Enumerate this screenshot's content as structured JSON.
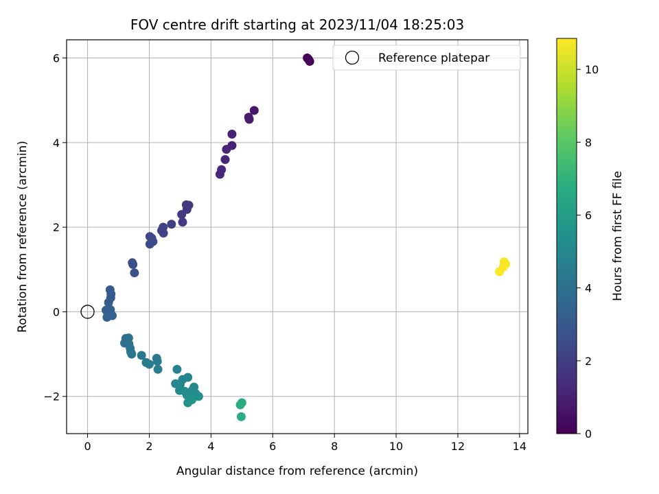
{
  "chart_data": {
    "type": "scatter",
    "title": "FOV centre drift starting at 2023/11/04 18:25:03",
    "xlabel": "Angular distance from reference (arcmin)",
    "ylabel": "Rotation from reference (arcmin)",
    "xlim": [
      -0.68,
      14.27
    ],
    "ylim": [
      -2.88,
      6.43
    ],
    "xticks": [
      0,
      2,
      4,
      6,
      8,
      10,
      12,
      14
    ],
    "xtick_labels": [
      "0",
      "2",
      "4",
      "6",
      "8",
      "10",
      "12",
      "14"
    ],
    "yticks": [
      -2,
      0,
      2,
      4,
      6
    ],
    "ytick_labels": [
      "−2",
      "0",
      "2",
      "4",
      "6"
    ],
    "grid": true,
    "legend": {
      "placement": "top-right",
      "entries": [
        "Reference platepar"
      ]
    },
    "reference_point": {
      "x": 0,
      "y": 0,
      "label": "Reference platepar"
    },
    "colorbar": {
      "label": "Hours from first FF file",
      "colormap": "viridis",
      "range": [
        0,
        10.85
      ],
      "ticks": [
        0,
        2,
        4,
        6,
        8,
        10
      ],
      "tick_labels": [
        "0",
        "2",
        "4",
        "6",
        "8",
        "10"
      ]
    },
    "points": [
      {
        "x": 7.12,
        "y": 6.0,
        "c": 0.05
      },
      {
        "x": 7.16,
        "y": 5.97,
        "c": 0.1
      },
      {
        "x": 7.2,
        "y": 5.92,
        "c": 0.15
      },
      {
        "x": 5.4,
        "y": 4.76,
        "c": 0.7
      },
      {
        "x": 5.22,
        "y": 4.6,
        "c": 0.8
      },
      {
        "x": 5.24,
        "y": 4.55,
        "c": 0.85
      },
      {
        "x": 4.68,
        "y": 4.2,
        "c": 1.0
      },
      {
        "x": 4.68,
        "y": 3.93,
        "c": 1.05
      },
      {
        "x": 4.5,
        "y": 3.84,
        "c": 1.1
      },
      {
        "x": 4.46,
        "y": 3.6,
        "c": 1.15
      },
      {
        "x": 4.34,
        "y": 3.36,
        "c": 1.2
      },
      {
        "x": 4.29,
        "y": 3.25,
        "c": 1.25
      },
      {
        "x": 3.2,
        "y": 2.53,
        "c": 1.7
      },
      {
        "x": 3.28,
        "y": 2.52,
        "c": 1.72
      },
      {
        "x": 3.22,
        "y": 2.42,
        "c": 1.75
      },
      {
        "x": 3.05,
        "y": 2.3,
        "c": 1.8
      },
      {
        "x": 3.08,
        "y": 2.12,
        "c": 1.85
      },
      {
        "x": 2.72,
        "y": 2.07,
        "c": 2.0
      },
      {
        "x": 2.45,
        "y": 2.0,
        "c": 2.1
      },
      {
        "x": 2.4,
        "y": 1.92,
        "c": 2.15
      },
      {
        "x": 2.46,
        "y": 1.86,
        "c": 2.2
      },
      {
        "x": 2.02,
        "y": 1.78,
        "c": 2.3
      },
      {
        "x": 2.08,
        "y": 1.74,
        "c": 2.35
      },
      {
        "x": 2.12,
        "y": 1.66,
        "c": 2.4
      },
      {
        "x": 2.02,
        "y": 1.6,
        "c": 2.45
      },
      {
        "x": 1.45,
        "y": 1.16,
        "c": 2.6
      },
      {
        "x": 1.47,
        "y": 1.12,
        "c": 2.65
      },
      {
        "x": 1.52,
        "y": 0.92,
        "c": 2.7
      },
      {
        "x": 0.73,
        "y": 0.52,
        "c": 3.0
      },
      {
        "x": 0.76,
        "y": 0.42,
        "c": 3.05
      },
      {
        "x": 0.75,
        "y": 0.33,
        "c": 3.1
      },
      {
        "x": 0.68,
        "y": 0.22,
        "c": 3.15
      },
      {
        "x": 0.6,
        "y": 0.04,
        "c": 3.25
      },
      {
        "x": 0.74,
        "y": 0.05,
        "c": 3.28
      },
      {
        "x": 0.66,
        "y": -0.06,
        "c": 3.3
      },
      {
        "x": 0.8,
        "y": -0.09,
        "c": 3.35
      },
      {
        "x": 0.63,
        "y": -0.13,
        "c": 3.4
      },
      {
        "x": 1.24,
        "y": -0.63,
        "c": 3.9
      },
      {
        "x": 1.33,
        "y": -0.62,
        "c": 3.95
      },
      {
        "x": 1.2,
        "y": -0.74,
        "c": 4.0
      },
      {
        "x": 1.34,
        "y": -0.76,
        "c": 4.05
      },
      {
        "x": 1.38,
        "y": -0.86,
        "c": 4.1
      },
      {
        "x": 1.4,
        "y": -0.95,
        "c": 4.15
      },
      {
        "x": 1.43,
        "y": -1.0,
        "c": 4.2
      },
      {
        "x": 1.75,
        "y": -1.03,
        "c": 4.3
      },
      {
        "x": 2.24,
        "y": -1.1,
        "c": 4.4
      },
      {
        "x": 2.26,
        "y": -1.17,
        "c": 4.45
      },
      {
        "x": 1.9,
        "y": -1.2,
        "c": 4.5
      },
      {
        "x": 2.0,
        "y": -1.24,
        "c": 4.55
      },
      {
        "x": 2.28,
        "y": -1.36,
        "c": 4.6
      },
      {
        "x": 2.9,
        "y": -1.36,
        "c": 4.8
      },
      {
        "x": 3.25,
        "y": -1.55,
        "c": 4.9
      },
      {
        "x": 3.08,
        "y": -1.6,
        "c": 4.95
      },
      {
        "x": 2.85,
        "y": -1.7,
        "c": 5.0
      },
      {
        "x": 3.0,
        "y": -1.72,
        "c": 5.05
      },
      {
        "x": 3.45,
        "y": -1.78,
        "c": 5.1
      },
      {
        "x": 3.4,
        "y": -1.85,
        "c": 5.15
      },
      {
        "x": 2.98,
        "y": -1.86,
        "c": 5.2
      },
      {
        "x": 3.15,
        "y": -1.88,
        "c": 5.25
      },
      {
        "x": 3.5,
        "y": -1.93,
        "c": 5.3
      },
      {
        "x": 3.22,
        "y": -1.97,
        "c": 5.35
      },
      {
        "x": 3.6,
        "y": -2.0,
        "c": 5.4
      },
      {
        "x": 3.33,
        "y": -2.05,
        "c": 5.45
      },
      {
        "x": 3.38,
        "y": -2.08,
        "c": 5.5
      },
      {
        "x": 3.25,
        "y": -2.15,
        "c": 5.55
      },
      {
        "x": 5.0,
        "y": -2.15,
        "c": 6.6
      },
      {
        "x": 4.95,
        "y": -2.2,
        "c": 6.65
      },
      {
        "x": 4.98,
        "y": -2.48,
        "c": 6.75
      },
      {
        "x": 13.5,
        "y": 1.18,
        "c": 10.7
      },
      {
        "x": 13.55,
        "y": 1.13,
        "c": 10.75
      },
      {
        "x": 13.48,
        "y": 1.06,
        "c": 10.78
      },
      {
        "x": 13.35,
        "y": 0.95,
        "c": 10.8
      }
    ]
  }
}
